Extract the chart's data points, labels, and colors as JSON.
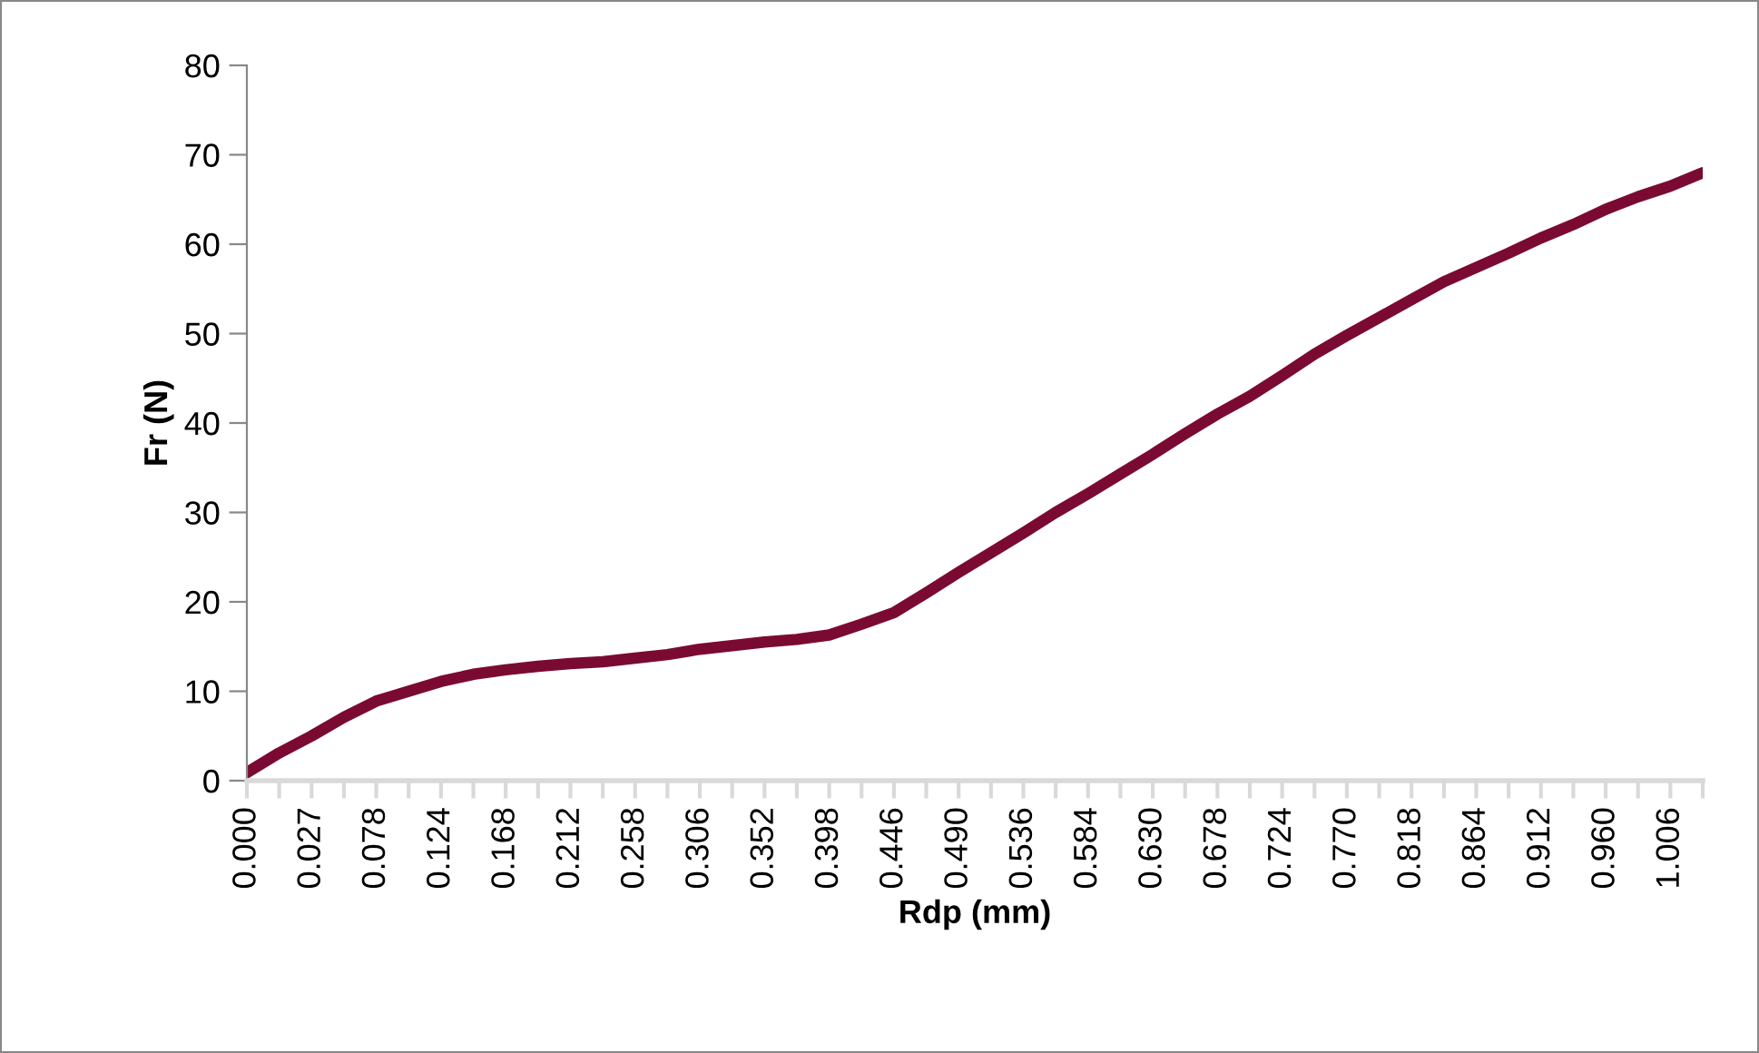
{
  "chart_data": {
    "type": "line",
    "xlabel": "Rdp (mm)",
    "ylabel": "Fr (N)",
    "categories": [
      "0.000",
      null,
      "0.027",
      null,
      "0.078",
      null,
      "0.124",
      null,
      "0.168",
      null,
      "0.212",
      null,
      "0.258",
      null,
      "0.306",
      null,
      "0.352",
      null,
      "0.398",
      null,
      "0.446",
      null,
      "0.490",
      null,
      "0.536",
      null,
      "0.584",
      null,
      "0.630",
      null,
      "0.678",
      null,
      "0.724",
      null,
      "0.770",
      null,
      "0.818",
      null,
      "0.864",
      null,
      "0.912",
      null,
      "0.960",
      null,
      "1.006",
      null
    ],
    "series": [
      {
        "color": "#7b0a33",
        "values": [
          0.9,
          3.1,
          5.0,
          7.1,
          8.9,
          10.0,
          11.1,
          11.9,
          12.4,
          12.8,
          13.1,
          13.3,
          13.7,
          14.1,
          14.7,
          15.1,
          15.5,
          15.8,
          16.3,
          17.5,
          18.8,
          21.0,
          23.3,
          25.5,
          27.7,
          30.0,
          32.1,
          34.3,
          36.5,
          38.8,
          41.0,
          43.0,
          45.3,
          47.7,
          49.8,
          51.8,
          53.8,
          55.8,
          57.4,
          59.0,
          60.7,
          62.2,
          63.9,
          65.3,
          66.5,
          68.0
        ]
      }
    ],
    "ylim": [
      0,
      80
    ],
    "yticks": [
      0,
      10,
      20,
      30,
      40,
      50,
      60,
      70,
      80
    ],
    "grid": false,
    "legend": false,
    "marker": "none",
    "line_style": "solid"
  }
}
